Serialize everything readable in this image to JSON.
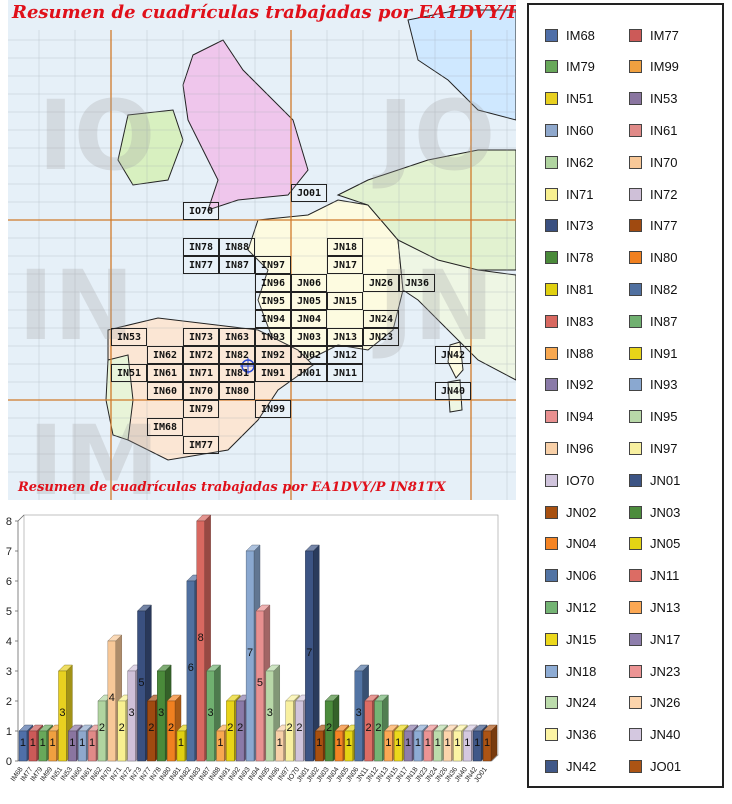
{
  "map": {
    "title": "Resumen de cuadrículas trabajadas por EA1DVY/P",
    "subtitle": "Resumen de cuadrículas trabajadas por EA1DVY/P IN81TX",
    "watermarks": [
      "IO",
      "JO",
      "IN",
      "JN",
      "IM"
    ],
    "grids": [
      "JO01",
      "IO70",
      "IN78",
      "IN88",
      "JN18",
      "IN77",
      "IN87",
      "IN97",
      "JN17",
      "JN06",
      "JN26",
      "JN36",
      "IN96",
      "JN05",
      "IN95",
      "JN15",
      "IN94",
      "JN04",
      "JN24",
      "IN53",
      "IN63",
      "IN73",
      "IN93",
      "JN03",
      "JN13",
      "JN23",
      "IN62",
      "IN72",
      "IN82",
      "IN92",
      "JN02",
      "JN12",
      "JN42",
      "IN51",
      "IN61",
      "IN71",
      "IN81",
      "IN91",
      "JN01",
      "JN11",
      "IN60",
      "IN70",
      "IN80",
      "JN40",
      "IN79",
      "IN99",
      "IM68",
      "IM77"
    ]
  },
  "chart_data": {
    "type": "bar",
    "categories": [
      "IM68",
      "IM77",
      "IM79",
      "IM99",
      "IN51",
      "IN53",
      "IN60",
      "IN61",
      "IN62",
      "IN70",
      "IN71",
      "IN72",
      "IN73",
      "IN77",
      "IN78",
      "IN80",
      "IN81",
      "IN82",
      "IN83",
      "IN87",
      "IN88",
      "IN91",
      "IN92",
      "IN93",
      "IN94",
      "IN95",
      "IN96",
      "IN97",
      "IO70",
      "JN01",
      "JN02",
      "JN03",
      "JN04",
      "JN05",
      "JN06",
      "JN11",
      "JN12",
      "JN13",
      "JN15",
      "JN17",
      "JN18",
      "JN23",
      "JN24",
      "JN26",
      "JN36",
      "JN40",
      "JN42",
      "JO01"
    ],
    "values": [
      1,
      1,
      1,
      1,
      3,
      1,
      1,
      1,
      2,
      4,
      2,
      3,
      5,
      2,
      3,
      2,
      1,
      6,
      8,
      3,
      1,
      2,
      2,
      7,
      5,
      3,
      1,
      2,
      2,
      7,
      1,
      2,
      1,
      1,
      3,
      2,
      2,
      1,
      1,
      1,
      1,
      1,
      1,
      1,
      1,
      1,
      1,
      1
    ],
    "ylim": [
      0,
      8
    ],
    "yticks": [
      "0",
      "1",
      "2",
      "3",
      "4",
      "5",
      "6",
      "7",
      "8"
    ],
    "grid": false,
    "legend_position": "right",
    "colors": [
      "#4f6fa8",
      "#cc5a58",
      "#68a85a",
      "#f0a040",
      "#e8d020",
      "#8a75a0",
      "#8fa8cc",
      "#e08a88",
      "#b0d4a0",
      "#f8c898",
      "#f8f090",
      "#cfc0d8",
      "#3a5080",
      "#a04a10",
      "#4a8a3a",
      "#f08020",
      "#e0d010",
      "#5070a0",
      "#d86860",
      "#70b070",
      "#f8a850",
      "#e8d418",
      "#8a7aa8",
      "#8aa8d0",
      "#e89090",
      "#b8d8a8",
      "#f8d0a8",
      "#f8f0a0",
      "#d0c4dc",
      "#3c5484",
      "#a85010",
      "#4c8c3c",
      "#f48424",
      "#e4d414",
      "#5274a4",
      "#dc6c64",
      "#74b474",
      "#fca854",
      "#ecd81c",
      "#8e7eac",
      "#8eacd4",
      "#ec9494",
      "#bcdcac",
      "#fcd4ac",
      "#fcf4a4",
      "#d4c8e0",
      "#405888",
      "#ac5414"
    ]
  },
  "legend": {
    "items": [
      "IM68",
      "IM77",
      "IM79",
      "IM99",
      "IN51",
      "IN53",
      "IN60",
      "IN61",
      "IN62",
      "IN70",
      "IN71",
      "IN72",
      "IN73",
      "IN77",
      "IN78",
      "IN80",
      "IN81",
      "IN82",
      "IN83",
      "IN87",
      "IN88",
      "IN91",
      "IN92",
      "IN93",
      "IN94",
      "IN95",
      "IN96",
      "IN97",
      "IO70",
      "JN01",
      "JN02",
      "JN03",
      "JN04",
      "JN05",
      "JN06",
      "JN11",
      "JN12",
      "JN13",
      "JN15",
      "JN17",
      "JN18",
      "JN23",
      "JN24",
      "JN26",
      "JN36",
      "JN40",
      "JN42",
      "JO01"
    ]
  }
}
